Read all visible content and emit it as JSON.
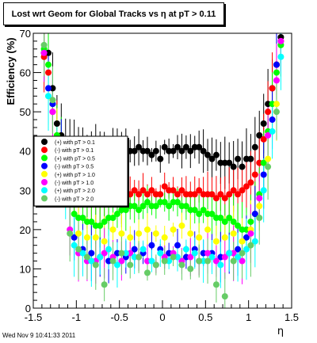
{
  "chart_data": {
    "type": "scatter",
    "title": "Lost wrt Geom for Global Tracks vs η at pT > 0.11",
    "xlabel": "η",
    "ylabel": "Efficiency (%)",
    "xlim": [
      -1.5,
      1.5
    ],
    "ylim": [
      0,
      70
    ],
    "xticks": [
      -1.5,
      -1,
      -0.5,
      0,
      0.5,
      1,
      1.5
    ],
    "yticks": [
      0,
      10,
      20,
      30,
      40,
      50,
      60,
      70
    ],
    "grid": false,
    "legend_position": "middle-left",
    "series": [
      {
        "name": "(+) with pT > 0.1",
        "color": "#000000",
        "x": [
          -1.375,
          -1.325,
          -1.275,
          -1.225,
          -1.175,
          -1.125,
          -1.075,
          -1.025,
          -0.975,
          -0.925,
          -0.875,
          -0.825,
          -0.775,
          -0.725,
          -0.675,
          -0.625,
          -0.575,
          -0.525,
          -0.475,
          -0.425,
          -0.375,
          -0.325,
          -0.275,
          -0.225,
          -0.175,
          -0.125,
          -0.075,
          -0.025,
          0.025,
          0.075,
          0.125,
          0.175,
          0.225,
          0.275,
          0.325,
          0.375,
          0.425,
          0.475,
          0.525,
          0.575,
          0.625,
          0.675,
          0.725,
          0.775,
          0.825,
          0.875,
          0.925,
          0.975,
          1.025,
          1.075,
          1.125,
          1.175,
          1.225,
          1.275,
          1.325,
          1.375
        ],
        "y": [
          65,
          65,
          56,
          47,
          44,
          42,
          41,
          40,
          40,
          39,
          39,
          39,
          40,
          40,
          39,
          38,
          41,
          40,
          41,
          41,
          40,
          40,
          41,
          40,
          40,
          39,
          40,
          38,
          41,
          40,
          40,
          41,
          40,
          41,
          40,
          41,
          41,
          40,
          39,
          38,
          39,
          37,
          37,
          37,
          36,
          38,
          36,
          38,
          38,
          41,
          44,
          47,
          52,
          56,
          62,
          69
        ]
      },
      {
        "name": "(-) with pT > 0.1",
        "color": "#ff0000",
        "x": [
          -1.375,
          -1.325,
          -1.275,
          -1.225,
          -1.175,
          -1.125,
          -1.075,
          -1.025,
          -0.975,
          -0.925,
          -0.875,
          -0.825,
          -0.775,
          -0.725,
          -0.675,
          -0.625,
          -0.575,
          -0.525,
          -0.475,
          -0.425,
          -0.375,
          -0.325,
          -0.275,
          -0.225,
          -0.175,
          -0.125,
          -0.075,
          -0.025,
          0.025,
          0.075,
          0.125,
          0.175,
          0.225,
          0.275,
          0.325,
          0.375,
          0.425,
          0.475,
          0.525,
          0.575,
          0.625,
          0.675,
          0.725,
          0.775,
          0.825,
          0.875,
          0.925,
          0.975,
          1.025,
          1.075,
          1.125,
          1.175,
          1.225,
          1.275,
          1.325,
          1.375
        ],
        "y": [
          64,
          60,
          50,
          44,
          37,
          34,
          31,
          30,
          30,
          28,
          27,
          27,
          27,
          27,
          27,
          27,
          27,
          28,
          27,
          29,
          29,
          30,
          29,
          30,
          29,
          30,
          29,
          29,
          31,
          30,
          30,
          29,
          30,
          29,
          29,
          29,
          30,
          29,
          29,
          29,
          28,
          29,
          28,
          29,
          30,
          29,
          30,
          31,
          32,
          34,
          37,
          43,
          50,
          56,
          62,
          68
        ]
      },
      {
        "name": "(+) with pT > 0.5",
        "color": "#00ff00",
        "x": [
          -1.375,
          -1.325,
          -1.275,
          -1.225,
          -1.175,
          -1.125,
          -1.075,
          -1.025,
          -0.975,
          -0.925,
          -0.875,
          -0.825,
          -0.775,
          -0.725,
          -0.675,
          -0.625,
          -0.575,
          -0.525,
          -0.475,
          -0.425,
          -0.375,
          -0.325,
          -0.275,
          -0.225,
          -0.175,
          -0.125,
          -0.075,
          -0.025,
          0.025,
          0.075,
          0.125,
          0.175,
          0.225,
          0.275,
          0.325,
          0.375,
          0.425,
          0.475,
          0.525,
          0.575,
          0.625,
          0.675,
          0.725,
          0.775,
          0.825,
          0.875,
          0.925,
          0.975,
          1.025,
          1.075,
          1.125,
          1.175,
          1.225,
          1.275,
          1.325,
          1.375
        ],
        "y": [
          66,
          62,
          52,
          44,
          40,
          33,
          28,
          24,
          23,
          23,
          22,
          22,
          21,
          21,
          22,
          23,
          23,
          24,
          25,
          25,
          26,
          26,
          25,
          26,
          27,
          26,
          26,
          27,
          27,
          26,
          27,
          27,
          26,
          26,
          25,
          25,
          24,
          25,
          24,
          24,
          23,
          23,
          22,
          23,
          22,
          21,
          20,
          20,
          22,
          24,
          29,
          37,
          45,
          52,
          60,
          67
        ]
      },
      {
        "name": "(-) with pT > 0.5",
        "color": "#0000ff",
        "x": [
          -1.325,
          -1.275,
          -1.175,
          -1.025,
          -0.925,
          -0.825,
          -0.725,
          -0.625,
          -0.525,
          -0.425,
          -0.325,
          -0.225,
          -0.125,
          -0.025,
          0.075,
          0.175,
          0.275,
          0.375,
          0.475,
          0.575,
          0.675,
          0.775,
          0.875,
          0.975,
          1.075,
          1.175,
          1.275,
          1.325
        ],
        "y": [
          56,
          52,
          40,
          18,
          15,
          14,
          13,
          12,
          14,
          13,
          15,
          14,
          16,
          15,
          14,
          16,
          13,
          15,
          14,
          14,
          13,
          14,
          15,
          18,
          24,
          34,
          48,
          62
        ]
      },
      {
        "name": "(+) with pT > 1.0",
        "color": "#ffff00",
        "x": [
          -1.325,
          -1.225,
          -1.125,
          -0.975,
          -0.875,
          -0.775,
          -0.675,
          -0.575,
          -0.475,
          -0.375,
          -0.275,
          -0.175,
          -0.075,
          0.025,
          0.125,
          0.225,
          0.325,
          0.425,
          0.525,
          0.625,
          0.725,
          0.825,
          0.925,
          1.025,
          1.125,
          1.225,
          1.325
        ],
        "y": [
          54,
          42,
          32,
          19,
          18,
          18,
          17,
          20,
          19,
          18,
          19,
          20,
          19,
          18,
          20,
          21,
          19,
          18,
          20,
          17,
          18,
          19,
          17,
          20,
          26,
          38,
          52
        ]
      },
      {
        "name": "(-) with pT > 1.0",
        "color": "#ff00ff",
        "x": [
          -1.375,
          -1.275,
          -1.175,
          -1.075,
          -0.975,
          -0.875,
          -0.775,
          -0.675,
          -0.575,
          -0.475,
          -0.375,
          -0.275,
          -0.175,
          -0.075,
          0.025,
          0.125,
          0.225,
          0.325,
          0.425,
          0.525,
          0.625,
          0.725,
          0.825,
          0.925,
          1.025,
          1.125,
          1.225,
          1.325,
          1.375
        ],
        "y": [
          65,
          50,
          36,
          20,
          14,
          12,
          12,
          14,
          13,
          12,
          14,
          13,
          12,
          11,
          13,
          14,
          12,
          13,
          12,
          14,
          12,
          13,
          14,
          12,
          19,
          28,
          44,
          58,
          68
        ]
      },
      {
        "name": "(+) with pT > 2.0",
        "color": "#00ffff",
        "x": [
          -1.325,
          -1.225,
          -1.125,
          -1.025,
          -0.925,
          -0.825,
          -0.725,
          -0.625,
          -0.525,
          -0.425,
          -0.325,
          -0.225,
          -0.125,
          -0.025,
          0.075,
          0.175,
          0.275,
          0.375,
          0.475,
          0.575,
          0.675,
          0.775,
          0.875,
          0.975,
          1.075,
          1.175,
          1.275,
          1.375
        ],
        "y": [
          54,
          40,
          30,
          16,
          14,
          12,
          13,
          15,
          11,
          14,
          13,
          15,
          12,
          14,
          12,
          13,
          15,
          14,
          12,
          13,
          11,
          14,
          13,
          15,
          17,
          30,
          45,
          64
        ]
      },
      {
        "name": "(-) with pT > 2.0",
        "color": "#66cc66",
        "x": [
          -1.375,
          -1.275,
          -1.175,
          -1.075,
          -0.975,
          -0.875,
          -0.775,
          -0.675,
          -0.575,
          -0.475,
          -0.375,
          -0.275,
          -0.175,
          -0.075,
          0.025,
          0.125,
          0.225,
          0.325,
          0.425,
          0.525,
          0.625,
          0.725,
          0.825,
          0.925,
          1.025,
          1.125,
          1.225,
          1.325
        ],
        "y": [
          67,
          53,
          38,
          19,
          15,
          13,
          11,
          6,
          12,
          14,
          11,
          13,
          9,
          11,
          12,
          13,
          11,
          10,
          12,
          12,
          6,
          3,
          12,
          14,
          16,
          23,
          36,
          50
        ]
      }
    ]
  },
  "footer": {
    "timestamp": "Wed Nov  9 10:41:33 2011"
  }
}
